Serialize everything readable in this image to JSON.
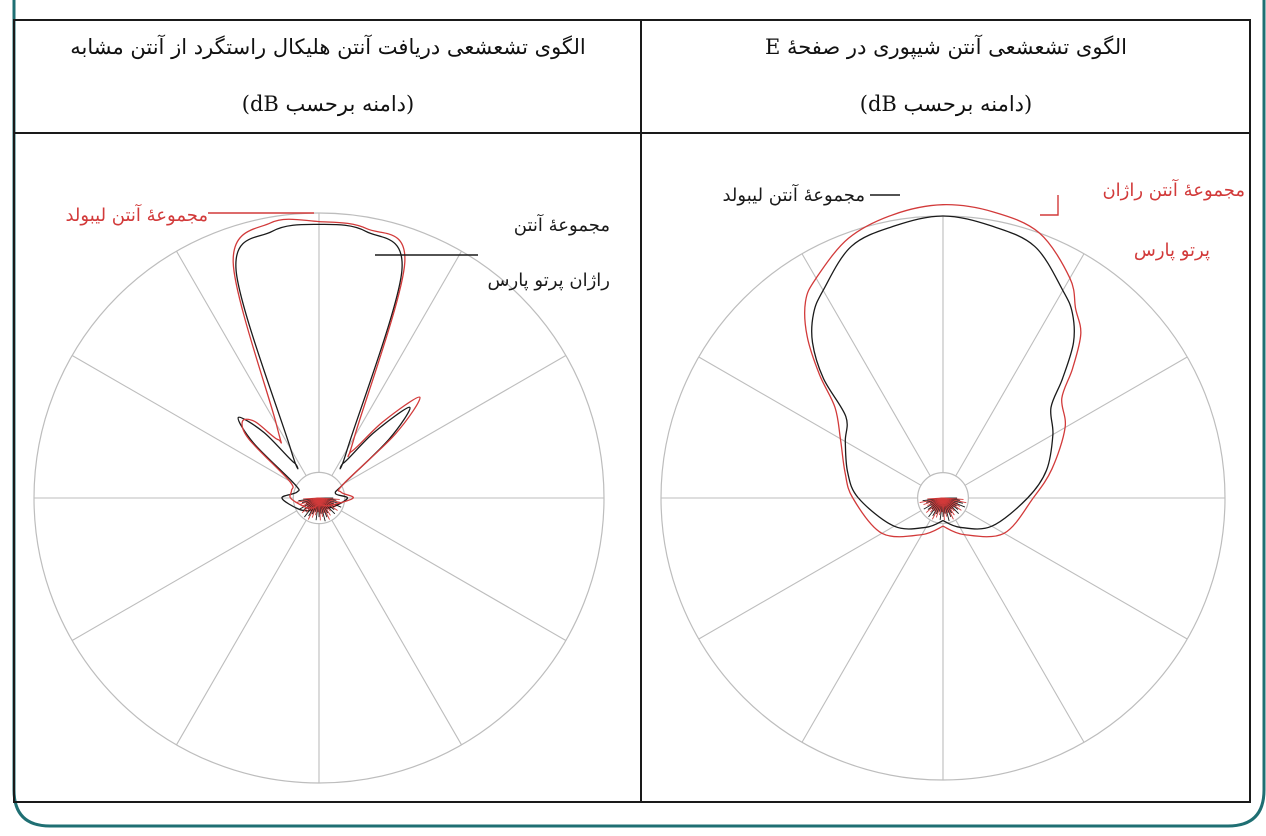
{
  "colors": {
    "frame": "#1f6f73",
    "grid": "#bdbdbd",
    "black_series": "#1a1a1a",
    "red_series": "#d23a3a",
    "table_border": "#1a1a1a"
  },
  "chart_data": [
    {
      "type": "polar",
      "title": "الگوی تشعشعی دریافت آنتن هلیکال راستگرد از آنتن مشابه",
      "subtitle": "(دامنه برحسب dB)",
      "grid": true,
      "radial_lines_deg": [
        0,
        30,
        60,
        90,
        120,
        150,
        180,
        210,
        240,
        270,
        300,
        330
      ],
      "theta_deg": [
        -180,
        -150,
        -120,
        -90,
        -75,
        -60,
        -50,
        -45,
        -40,
        -35,
        -30,
        -20,
        -10,
        0,
        10,
        20,
        30,
        35,
        40,
        45,
        50,
        60,
        75,
        90,
        120,
        150,
        180
      ],
      "series": [
        {
          "name": "مجموعهٔ آنتن راژان پرتو پارس",
          "color": "black",
          "values": [
            0.03,
            0.05,
            0.08,
            0.13,
            0.08,
            0.1,
            0.3,
            0.4,
            0.3,
            0.15,
            0.2,
            0.85,
            0.95,
            0.96,
            0.95,
            0.85,
            0.2,
            0.15,
            0.3,
            0.45,
            0.32,
            0.1,
            0.06,
            0.1,
            0.06,
            0.04,
            0.03
          ]
        },
        {
          "name": "مجموعهٔ آنتن لیبولد",
          "color": "red",
          "values": [
            0.02,
            0.04,
            0.06,
            0.1,
            0.1,
            0.12,
            0.32,
            0.38,
            0.35,
            0.25,
            0.3,
            0.88,
            0.98,
            0.97,
            0.96,
            0.88,
            0.25,
            0.2,
            0.35,
            0.5,
            0.35,
            0.1,
            0.08,
            0.12,
            0.05,
            0.03,
            0.02
          ]
        }
      ],
      "annotations": [
        {
          "text": "مجموعهٔ آنتن لیبولد",
          "color": "red"
        },
        {
          "text": "مجموعهٔ آنتن",
          "color": "black"
        },
        {
          "text": "راژان پرتو پارس",
          "color": "black"
        }
      ]
    },
    {
      "type": "polar",
      "title": "الگوی تشعشعی آنتن شیپوری در صفحهٔ E",
      "subtitle": "(دامنه برحسب dB)",
      "grid": true,
      "radial_lines_deg": [
        0,
        30,
        60,
        90,
        120,
        150,
        180,
        210,
        240,
        270,
        300,
        330
      ],
      "theta_deg": [
        -180,
        -150,
        -120,
        -90,
        -75,
        -60,
        -50,
        -45,
        -40,
        -35,
        -30,
        -20,
        -10,
        0,
        10,
        20,
        30,
        35,
        40,
        45,
        50,
        60,
        75,
        90,
        120,
        150,
        180
      ],
      "series": [
        {
          "name": "مجموعهٔ آنتن لیبولد",
          "color": "black",
          "values": [
            0.08,
            0.12,
            0.2,
            0.3,
            0.35,
            0.4,
            0.45,
            0.6,
            0.72,
            0.8,
            0.85,
            0.95,
            0.98,
            1.0,
            0.98,
            0.95,
            0.85,
            0.8,
            0.72,
            0.6,
            0.5,
            0.45,
            0.38,
            0.3,
            0.2,
            0.12,
            0.08
          ]
        },
        {
          "name": "مجموعهٔ آنتن راژان پرتو پارس",
          "color": "red",
          "values": [
            0.1,
            0.15,
            0.25,
            0.32,
            0.36,
            0.42,
            0.5,
            0.62,
            0.75,
            0.85,
            0.9,
            0.98,
            1.02,
            1.04,
            1.03,
            1.0,
            0.9,
            0.82,
            0.76,
            0.65,
            0.55,
            0.5,
            0.4,
            0.32,
            0.25,
            0.15,
            0.1
          ]
        }
      ],
      "annotations": [
        {
          "text": "مجموعهٔ آنتن لیبولد",
          "color": "black"
        },
        {
          "text": "مجموعهٔ آنتن راژان",
          "color": "red"
        },
        {
          "text": "پرتو پارس",
          "color": "red"
        }
      ]
    }
  ]
}
